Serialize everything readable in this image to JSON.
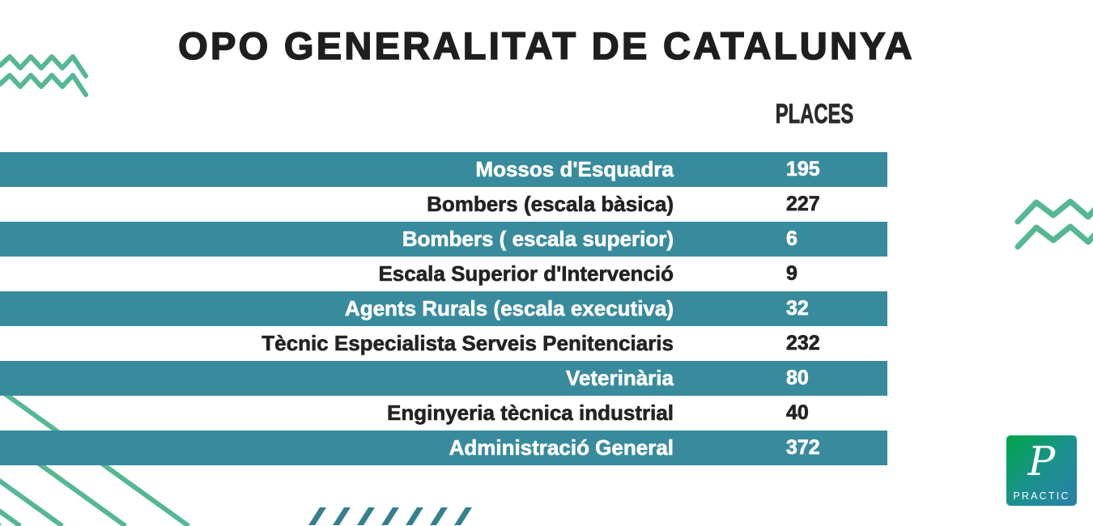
{
  "title": "OPO GENERALITAT DE CATALUNYA",
  "column_header": "PLACES",
  "chart_data": {
    "type": "table",
    "title": "OPO GENERALITAT DE CATALUNYA",
    "columns": [
      "",
      "PLACES"
    ],
    "categories": [
      "Mossos d'Esquadra",
      "Bombers (escala bàsica)",
      "Bombers ( escala superior)",
      "Escala Superior d'Intervenció",
      "Agents Rurals (escala executiva)",
      "Tècnic Especialista Serveis Penitenciaris",
      "Veterinària",
      "Enginyeria tècnica industrial",
      "Administració General"
    ],
    "values": [
      195,
      227,
      6,
      9,
      32,
      232,
      80,
      40,
      372
    ]
  },
  "rows": [
    {
      "label": "Mossos d'Esquadra",
      "value": "195"
    },
    {
      "label": "Bombers (escala bàsica)",
      "value": "227"
    },
    {
      "label": "Bombers ( escala superior)",
      "value": "6"
    },
    {
      "label": "Escala Superior d'Intervenció",
      "value": "9"
    },
    {
      "label": "Agents Rurals (escala executiva)",
      "value": "32"
    },
    {
      "label": "Tècnic Especialista Serveis Penitenciaris",
      "value": "232"
    },
    {
      "label": "Veterinària",
      "value": "80"
    },
    {
      "label": "Enginyeria tècnica industrial",
      "value": "40"
    },
    {
      "label": "Administració General",
      "value": "372"
    }
  ],
  "logo": {
    "initial": "P",
    "name": "PRACTIC"
  },
  "colors": {
    "row_teal": "#388b9c",
    "decoration_green": "#55b892",
    "slash_teal": "#35808f",
    "text_dark": "#1f1f1f"
  }
}
